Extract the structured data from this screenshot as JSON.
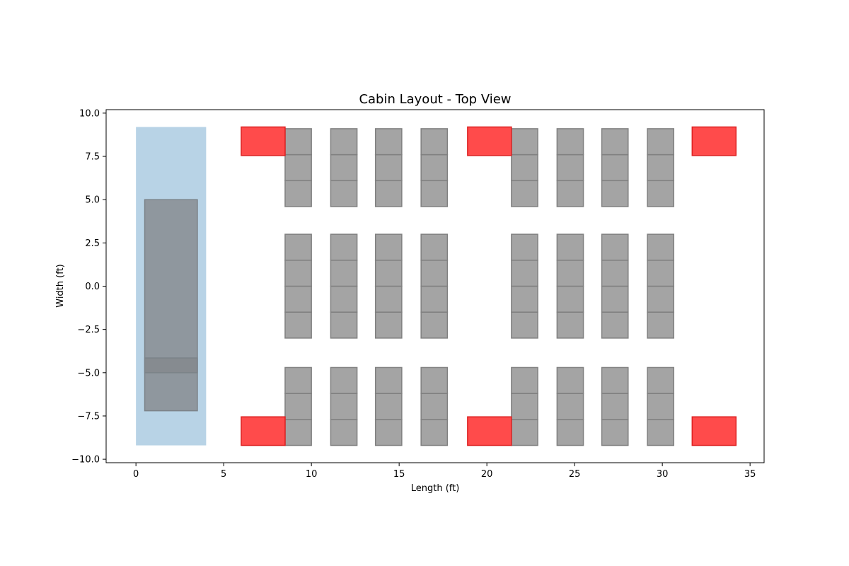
{
  "chart_data": {
    "type": "layout",
    "title": "Cabin Layout - Top View",
    "xlabel": "Length (ft)",
    "ylabel": "Width (ft)",
    "xlim": [
      -1.7,
      35.8
    ],
    "ylim": [
      -10.2,
      10.2
    ],
    "xticks": [
      0,
      5,
      10,
      15,
      20,
      25,
      30,
      35
    ],
    "yticks": [
      -10.0,
      -7.5,
      -5.0,
      -2.5,
      0.0,
      2.5,
      5.0,
      7.5,
      10.0
    ],
    "xtick_labels": [
      "0",
      "5",
      "10",
      "15",
      "20",
      "25",
      "30",
      "35"
    ],
    "ytick_labels": [
      "−10.0",
      "−7.5",
      "−5.0",
      "−2.5",
      "0.0",
      "2.5",
      "5.0",
      "7.5",
      "10.0"
    ],
    "grid": false,
    "colors": {
      "cockpit": "#b8d3e6",
      "cockpit_unit": "#8f979e",
      "cockpit_unit_band": "#868b90",
      "seat": "#a4a4a4",
      "seat_edge": "#808080",
      "galley": "#ff4b4b",
      "galley_edge": "#dd2222"
    },
    "cockpit_area": {
      "x": 0,
      "y": -9.2,
      "width": 4.0,
      "height": 18.4
    },
    "cockpit_blocks": [
      {
        "x": 0.5,
        "y": -7.2,
        "width": 3.0,
        "height": 12.2
      },
      {
        "x": 0.5,
        "y": -5.0,
        "width": 3.0,
        "height": 0.85
      }
    ],
    "seat_rows_x": [
      8.5,
      11.1,
      13.65,
      16.25,
      21.4,
      24.0,
      26.55,
      29.15
    ],
    "seat_width": 1.5,
    "seat_height": 1.5,
    "seat_columns_y": [
      -9.2,
      -7.7,
      -6.2,
      -3.0,
      -1.5,
      0.0,
      1.5,
      4.6,
      6.1,
      7.6
    ],
    "galleys": [
      {
        "x": 6.0,
        "y": 7.55,
        "width": 2.5,
        "height": 1.65
      },
      {
        "x": 6.0,
        "y": -9.2,
        "width": 2.5,
        "height": 1.65
      },
      {
        "x": 18.9,
        "y": 7.55,
        "width": 2.5,
        "height": 1.65
      },
      {
        "x": 18.9,
        "y": -9.2,
        "width": 2.5,
        "height": 1.65
      },
      {
        "x": 31.7,
        "y": 7.55,
        "width": 2.5,
        "height": 1.65
      },
      {
        "x": 31.7,
        "y": -9.2,
        "width": 2.5,
        "height": 1.65
      }
    ]
  }
}
